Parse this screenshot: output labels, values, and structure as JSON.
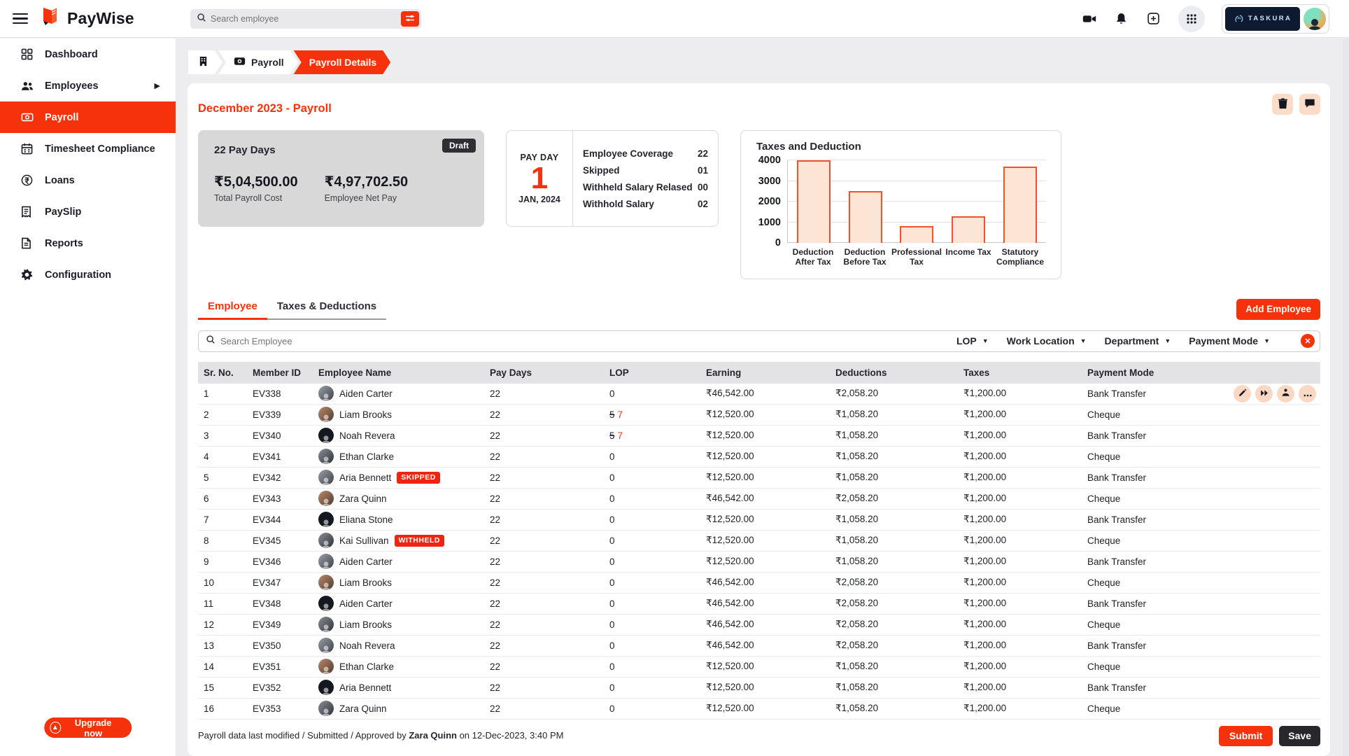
{
  "topbar": {
    "brand": "PayWise",
    "search_placeholder": "Search employee",
    "partner_brand": "TASKURA"
  },
  "sidebar": {
    "items": [
      {
        "label": "Dashboard"
      },
      {
        "label": "Employees"
      },
      {
        "label": "Payroll"
      },
      {
        "label": "Timesheet Compliance"
      },
      {
        "label": "Loans"
      },
      {
        "label": "PaySlip"
      },
      {
        "label": "Reports"
      },
      {
        "label": "Configuration"
      }
    ],
    "upgrade_label": "Upgrade now"
  },
  "breadcrumb": {
    "payroll": "Payroll",
    "current": "Payroll Details"
  },
  "page": {
    "title": "December 2023 - Payroll",
    "summary": {
      "pay_days": "22 Pay Days",
      "status": "Draft",
      "total_cost": "₹5,04,500.00",
      "total_cost_label": "Total Payroll Cost",
      "net_pay": "₹4,97,702.50",
      "net_pay_label": "Employee Net Pay"
    },
    "payday": {
      "label": "PAY DAY",
      "day": "1",
      "date": "JAN, 2024",
      "stats": [
        {
          "label": "Employee Coverage",
          "value": "22"
        },
        {
          "label": "Skipped",
          "value": "01"
        },
        {
          "label": "Withheld Salary Relased",
          "value": "00"
        },
        {
          "label": "Withhold Salary",
          "value": "02"
        }
      ]
    }
  },
  "chart_data": {
    "type": "bar",
    "title": "Taxes and Deduction",
    "categories": [
      "Deduction\nAfter Tax",
      "Deduction\nBefore Tax",
      "Professional\nTax",
      "Income Tax",
      "Statutory\nCompliance"
    ],
    "values": [
      4000,
      2500,
      800,
      1280,
      3700
    ],
    "ylim": [
      0,
      4000
    ],
    "yticks": [
      0,
      1000,
      2000,
      3000,
      4000
    ],
    "xlabel": "",
    "ylabel": "",
    "grid": true,
    "legend": "none",
    "bar_fill": "#fce5d5",
    "bar_stroke": "#f2512b"
  },
  "tabs": [
    {
      "label": "Employee",
      "active": true
    },
    {
      "label": "Taxes & Deductions",
      "active": false
    }
  ],
  "add_employee_label": "Add Employee",
  "filters": {
    "search_placeholder": "Search Employee",
    "dropdowns": [
      "LOP",
      "Work Location",
      "Department",
      "Payment Mode"
    ]
  },
  "table": {
    "columns": [
      "Sr. No.",
      "Member ID",
      "Employee Name",
      "Pay Days",
      "LOP",
      "Earning",
      "Deductions",
      "Taxes",
      "Payment Mode"
    ],
    "rows": [
      {
        "sr": "1",
        "member_id": "EV338",
        "name": "Aiden Carter",
        "badge": "",
        "pay_days": "22",
        "lop": "0",
        "earning": "₹46,542.00",
        "deductions": "₹2,058.20",
        "taxes": "₹1,200.00",
        "mode": "Bank Transfer",
        "actions": true
      },
      {
        "sr": "2",
        "member_id": "EV339",
        "name": "Liam Brooks",
        "badge": "",
        "pay_days": "22",
        "lop_old": "5",
        "lop_new": "7",
        "earning": "₹12,520.00",
        "deductions": "₹1,058.20",
        "taxes": "₹1,200.00",
        "mode": "Cheque"
      },
      {
        "sr": "3",
        "member_id": "EV340",
        "name": "Noah Revera",
        "badge": "",
        "pay_days": "22",
        "lop_old": "5",
        "lop_new": "7",
        "earning": "₹12,520.00",
        "deductions": "₹1,058.20",
        "taxes": "₹1,200.00",
        "mode": "Bank Transfer"
      },
      {
        "sr": "4",
        "member_id": "EV341",
        "name": "Ethan Clarke",
        "badge": "",
        "pay_days": "22",
        "lop": "0",
        "earning": "₹12,520.00",
        "deductions": "₹1,058.20",
        "taxes": "₹1,200.00",
        "mode": "Cheque"
      },
      {
        "sr": "5",
        "member_id": "EV342",
        "name": "Aria Bennett",
        "badge": "SKIPPED",
        "pay_days": "22",
        "lop": "0",
        "earning": "₹12,520.00",
        "deductions": "₹1,058.20",
        "taxes": "₹1,200.00",
        "mode": "Bank Transfer"
      },
      {
        "sr": "6",
        "member_id": "EV343",
        "name": "Zara Quinn",
        "badge": "",
        "pay_days": "22",
        "lop": "0",
        "earning": "₹46,542.00",
        "deductions": "₹2,058.20",
        "taxes": "₹1,200.00",
        "mode": "Cheque"
      },
      {
        "sr": "7",
        "member_id": "EV344",
        "name": "Eliana Stone",
        "badge": "",
        "pay_days": "22",
        "lop": "0",
        "earning": "₹12,520.00",
        "deductions": "₹1,058.20",
        "taxes": "₹1,200.00",
        "mode": "Bank Transfer"
      },
      {
        "sr": "8",
        "member_id": "EV345",
        "name": "Kai Sullivan",
        "badge": "WITHHELD",
        "pay_days": "22",
        "lop": "0",
        "earning": "₹12,520.00",
        "deductions": "₹1,058.20",
        "taxes": "₹1,200.00",
        "mode": "Cheque"
      },
      {
        "sr": "9",
        "member_id": "EV346",
        "name": "Aiden Carter",
        "badge": "",
        "pay_days": "22",
        "lop": "0",
        "earning": "₹12,520.00",
        "deductions": "₹1,058.20",
        "taxes": "₹1,200.00",
        "mode": "Bank Transfer"
      },
      {
        "sr": "10",
        "member_id": "EV347",
        "name": "Liam Brooks",
        "badge": "",
        "pay_days": "22",
        "lop": "0",
        "earning": "₹46,542.00",
        "deductions": "₹2,058.20",
        "taxes": "₹1,200.00",
        "mode": "Cheque"
      },
      {
        "sr": "11",
        "member_id": "EV348",
        "name": "Aiden Carter",
        "badge": "",
        "pay_days": "22",
        "lop": "0",
        "earning": "₹46,542.00",
        "deductions": "₹2,058.20",
        "taxes": "₹1,200.00",
        "mode": "Bank Transfer"
      },
      {
        "sr": "12",
        "member_id": "EV349",
        "name": "Liam Brooks",
        "badge": "",
        "pay_days": "22",
        "lop": "0",
        "earning": "₹46,542.00",
        "deductions": "₹2,058.20",
        "taxes": "₹1,200.00",
        "mode": "Cheque"
      },
      {
        "sr": "13",
        "member_id": "EV350",
        "name": "Noah Revera",
        "badge": "",
        "pay_days": "22",
        "lop": "0",
        "earning": "₹46,542.00",
        "deductions": "₹2,058.20",
        "taxes": "₹1,200.00",
        "mode": "Bank Transfer"
      },
      {
        "sr": "14",
        "member_id": "EV351",
        "name": "Ethan Clarke",
        "badge": "",
        "pay_days": "22",
        "lop": "0",
        "earning": "₹12,520.00",
        "deductions": "₹1,058.20",
        "taxes": "₹1,200.00",
        "mode": "Cheque"
      },
      {
        "sr": "15",
        "member_id": "EV352",
        "name": "Aria Bennett",
        "badge": "",
        "pay_days": "22",
        "lop": "0",
        "earning": "₹12,520.00",
        "deductions": "₹1,058.20",
        "taxes": "₹1,200.00",
        "mode": "Bank Transfer"
      },
      {
        "sr": "16",
        "member_id": "EV353",
        "name": "Zara Quinn",
        "badge": "",
        "pay_days": "22",
        "lop": "0",
        "earning": "₹12,520.00",
        "deductions": "₹1,058.20",
        "taxes": "₹1,200.00",
        "mode": "Cheque"
      }
    ]
  },
  "footer": {
    "note_prefix": "Payroll data last modified / Submitted / Approved by ",
    "approver": "Zara Quinn",
    "note_suffix": " on 12-Dec-2023, 3:40 PM",
    "submit_label": "Submit",
    "save_label": "Save"
  }
}
